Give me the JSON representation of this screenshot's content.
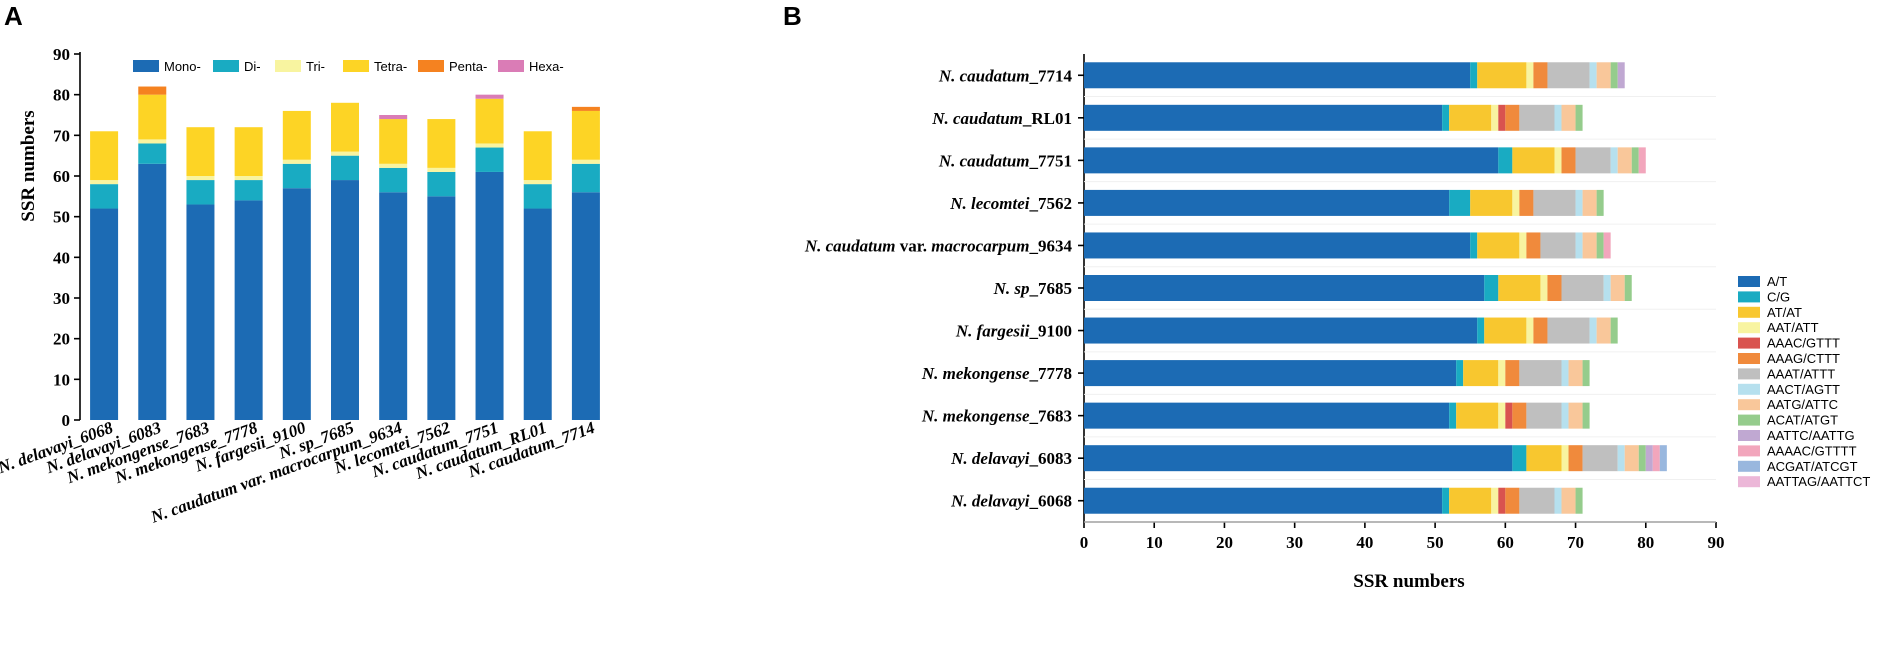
{
  "panels": {
    "a_label": "A",
    "b_label": "B"
  },
  "chart_data": [
    {
      "id": "A",
      "type": "bar",
      "stacked": true,
      "orientation": "vertical",
      "ylabel": "SSR numbers",
      "xlabel": "",
      "ylim": [
        0,
        90
      ],
      "yticks": [
        0,
        10,
        20,
        30,
        40,
        50,
        60,
        70,
        80,
        90
      ],
      "legend_position": "top",
      "categories": [
        [
          "N. delavayi",
          "_6068"
        ],
        [
          "N. delavayi",
          "_6083"
        ],
        [
          "N. mekongense",
          "_7683"
        ],
        [
          "N. mekongense",
          "_7778"
        ],
        [
          "N. fargesii",
          "_9100"
        ],
        [
          "N. sp",
          "_7685"
        ],
        [
          "N. caudatum var. macrocarpum",
          "_9634"
        ],
        [
          "N. lecomtei",
          "_7562"
        ],
        [
          "N. caudatum",
          "_7751"
        ],
        [
          "N. caudatum",
          "_RL01"
        ],
        [
          "N. caudatum",
          "_7714"
        ]
      ],
      "series": [
        {
          "name": "Mono-",
          "color": "#1c6bb4",
          "values": [
            52,
            63,
            53,
            54,
            57,
            59,
            56,
            55,
            61,
            52,
            56
          ]
        },
        {
          "name": "Di-",
          "color": "#19abc2",
          "values": [
            6,
            5,
            6,
            5,
            6,
            6,
            6,
            6,
            6,
            6,
            7
          ]
        },
        {
          "name": "Tri-",
          "color": "#f8f4a0",
          "values": [
            1,
            1,
            1,
            1,
            1,
            1,
            1,
            1,
            1,
            1,
            1
          ]
        },
        {
          "name": "Tetra-",
          "color": "#fdd425",
          "values": [
            12,
            11,
            12,
            12,
            12,
            12,
            11,
            12,
            11,
            12,
            12
          ]
        },
        {
          "name": "Penta-",
          "color": "#f58220",
          "values": [
            0,
            2,
            0,
            0,
            0,
            0,
            0,
            0,
            0,
            0,
            1
          ]
        },
        {
          "name": "Hexa-",
          "color": "#da7cb6",
          "values": [
            0,
            0,
            0,
            0,
            0,
            0,
            1,
            0,
            1,
            0,
            0
          ]
        }
      ]
    },
    {
      "id": "B",
      "type": "bar",
      "stacked": true,
      "orientation": "horizontal",
      "xlabel": "SSR numbers",
      "ylabel": "",
      "xlim": [
        0,
        90
      ],
      "xticks": [
        0,
        10,
        20,
        30,
        40,
        50,
        60,
        70,
        80,
        90
      ],
      "legend_position": "right",
      "categories": [
        [
          "N. caudatum",
          "_7714"
        ],
        [
          "N. caudatum",
          "_RL01"
        ],
        [
          "N. caudatum",
          "_7751"
        ],
        [
          "N. lecomtei",
          "_7562"
        ],
        [
          "N. caudatum",
          " var. ",
          "macrocarpum",
          "_9634"
        ],
        [
          "N. sp",
          "_7685"
        ],
        [
          "N. fargesii",
          "_9100"
        ],
        [
          "N. mekongense",
          "_7778"
        ],
        [
          "N. mekongense",
          "_7683"
        ],
        [
          "N. delavayi",
          "_6083"
        ],
        [
          "N. delavayi",
          "_6068"
        ]
      ],
      "series": [
        {
          "name": "A/T",
          "color": "#1c6bb4",
          "values": [
            55,
            51,
            59,
            52,
            55,
            57,
            56,
            53,
            52,
            61,
            51
          ]
        },
        {
          "name": "C/G",
          "color": "#19abc2",
          "values": [
            1,
            1,
            2,
            3,
            1,
            2,
            1,
            1,
            1,
            2,
            1
          ]
        },
        {
          "name": "AT/AT",
          "color": "#f8c72f",
          "values": [
            7,
            6,
            6,
            6,
            6,
            6,
            6,
            5,
            6,
            5,
            6
          ]
        },
        {
          "name": "AAT/ATT",
          "color": "#f8f4a0",
          "values": [
            1,
            1,
            1,
            1,
            1,
            1,
            1,
            1,
            1,
            1,
            1
          ]
        },
        {
          "name": "AAAC/GTTT",
          "color": "#d9534f",
          "values": [
            0,
            1,
            0,
            0,
            0,
            0,
            0,
            0,
            1,
            0,
            1
          ]
        },
        {
          "name": "AAAG/CTTT",
          "color": "#f08a3c",
          "values": [
            2,
            2,
            2,
            2,
            2,
            2,
            2,
            2,
            2,
            2,
            2
          ]
        },
        {
          "name": "AAAT/ATTT",
          "color": "#bfbfbf",
          "values": [
            6,
            5,
            5,
            6,
            5,
            6,
            6,
            6,
            5,
            5,
            5
          ]
        },
        {
          "name": "AACT/AGTT",
          "color": "#b6e0ee",
          "values": [
            1,
            1,
            1,
            1,
            1,
            1,
            1,
            1,
            1,
            1,
            1
          ]
        },
        {
          "name": "AATG/ATTC",
          "color": "#f9c79a",
          "values": [
            2,
            2,
            2,
            2,
            2,
            2,
            2,
            2,
            2,
            2,
            2
          ]
        },
        {
          "name": "ACAT/ATGT",
          "color": "#95cc8c",
          "values": [
            1,
            1,
            1,
            1,
            1,
            1,
            1,
            1,
            1,
            1,
            1
          ]
        },
        {
          "name": "AATTC/AATTG",
          "color": "#c0a8d2",
          "values": [
            1,
            0,
            0,
            0,
            0,
            0,
            0,
            0,
            0,
            1,
            0
          ]
        },
        {
          "name": "AAAAC/GTTTT",
          "color": "#f2a6bc",
          "values": [
            0,
            0,
            1,
            0,
            1,
            0,
            0,
            0,
            0,
            1,
            0
          ]
        },
        {
          "name": "ACGAT/ATCGT",
          "color": "#99b7de",
          "values": [
            0,
            0,
            0,
            0,
            0,
            0,
            0,
            0,
            0,
            1,
            0
          ]
        },
        {
          "name": "AATTAG/AATTCT",
          "color": "#ecb7d8",
          "values": [
            0,
            0,
            0,
            0,
            0,
            0,
            0,
            0,
            0,
            0,
            0
          ]
        }
      ]
    }
  ]
}
